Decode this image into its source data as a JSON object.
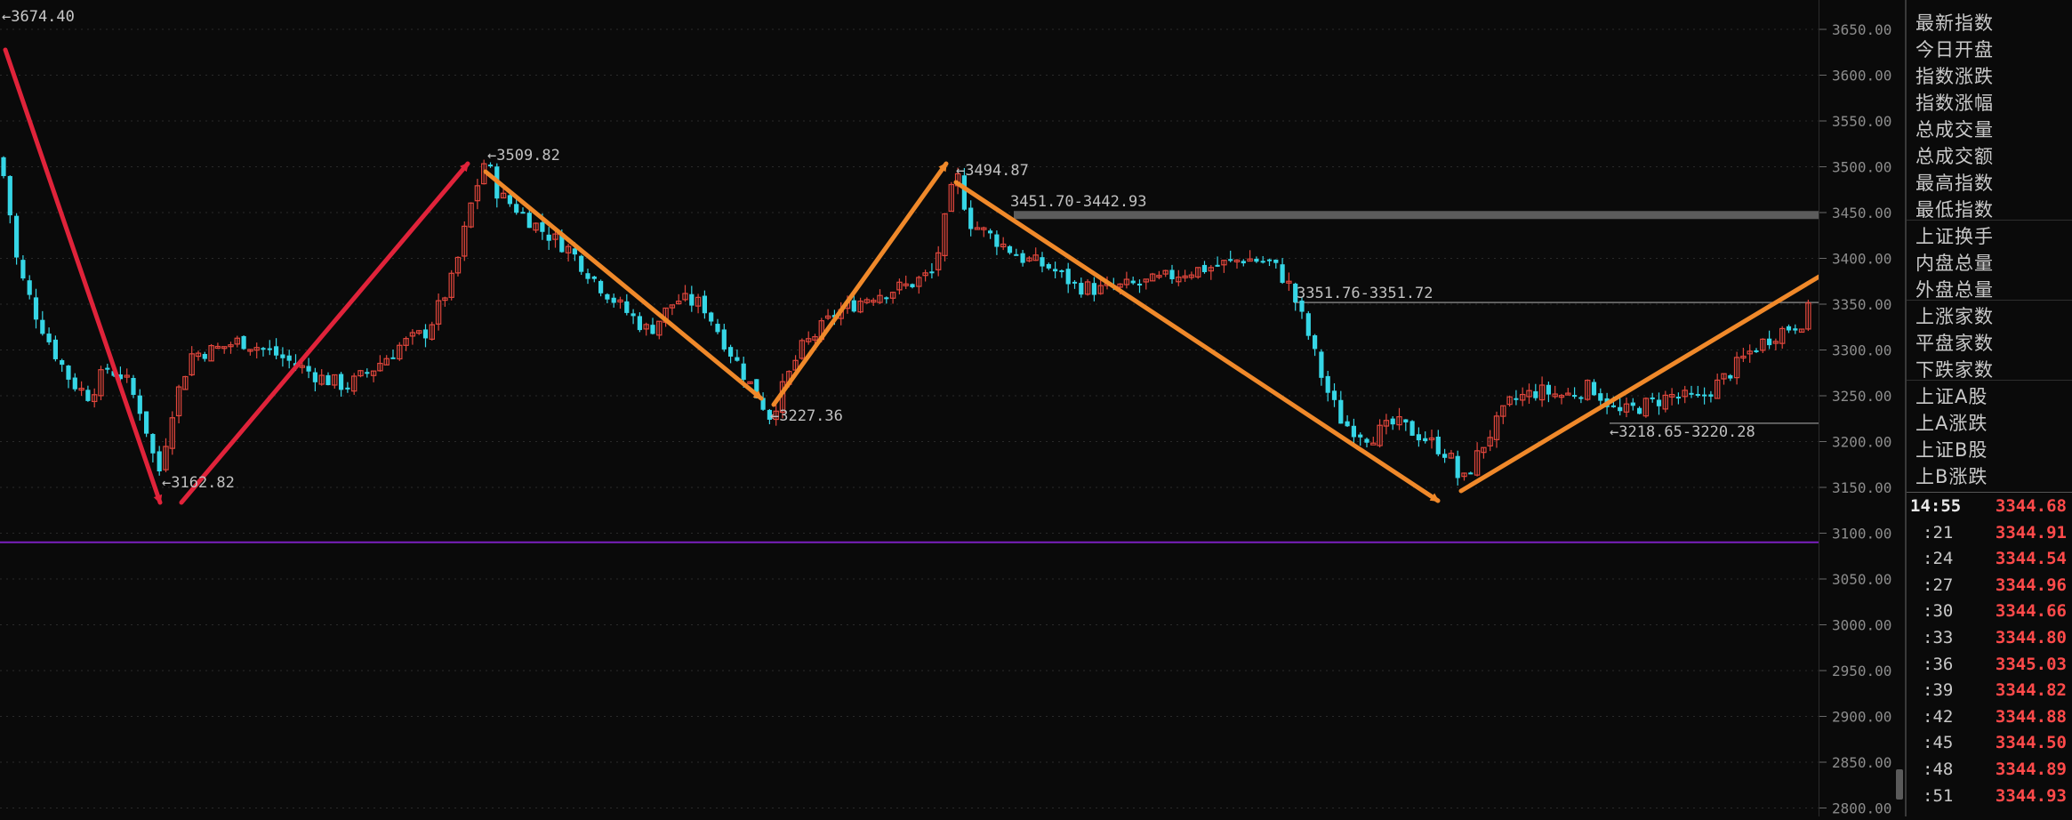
{
  "chart_data": {
    "type": "candlestick",
    "ylim": [
      2800,
      3675
    ],
    "y_ticks": [
      "3650.00",
      "3600.00",
      "3550.00",
      "3500.00",
      "3450.00",
      "3400.00",
      "3350.00",
      "3300.00",
      "3250.00",
      "3200.00",
      "3150.00",
      "3100.00",
      "3050.00",
      "3000.00",
      "2950.00",
      "2900.00",
      "2850.00",
      "2800.00"
    ],
    "top_label": "3674.40",
    "price_path": [
      [
        0,
        3510
      ],
      [
        8,
        3470
      ],
      [
        20,
        3390
      ],
      [
        40,
        3340
      ],
      [
        60,
        3300
      ],
      [
        80,
        3265
      ],
      [
        100,
        3250
      ],
      [
        120,
        3280
      ],
      [
        140,
        3270
      ],
      [
        160,
        3230
      ],
      [
        178,
        3162.82
      ],
      [
        195,
        3240
      ],
      [
        215,
        3295
      ],
      [
        240,
        3300
      ],
      [
        270,
        3310
      ],
      [
        300,
        3300
      ],
      [
        330,
        3285
      ],
      [
        360,
        3270
      ],
      [
        390,
        3260
      ],
      [
        420,
        3280
      ],
      [
        450,
        3305
      ],
      [
        480,
        3320
      ],
      [
        510,
        3380
      ],
      [
        530,
        3460
      ],
      [
        546,
        3509.82
      ],
      [
        560,
        3470
      ],
      [
        580,
        3455
      ],
      [
        610,
        3430
      ],
      [
        640,
        3410
      ],
      [
        670,
        3375
      ],
      [
        700,
        3345
      ],
      [
        730,
        3320
      ],
      [
        760,
        3355
      ],
      [
        790,
        3350
      ],
      [
        820,
        3300
      ],
      [
        845,
        3260
      ],
      [
        866,
        3227.36
      ],
      [
        900,
        3300
      ],
      [
        940,
        3340
      ],
      [
        980,
        3360
      ],
      [
        1020,
        3370
      ],
      [
        1050,
        3385
      ],
      [
        1075,
        3494.87
      ],
      [
        1090,
        3440
      ],
      [
        1120,
        3420
      ],
      [
        1150,
        3400
      ],
      [
        1180,
        3390
      ],
      [
        1210,
        3370
      ],
      [
        1240,
        3365
      ],
      [
        1270,
        3370
      ],
      [
        1300,
        3375
      ],
      [
        1330,
        3385
      ],
      [
        1360,
        3390
      ],
      [
        1400,
        3400
      ],
      [
        1430,
        3395
      ],
      [
        1450,
        3370
      ],
      [
        1470,
        3320
      ],
      [
        1490,
        3260
      ],
      [
        1510,
        3220
      ],
      [
        1540,
        3205
      ],
      [
        1570,
        3220
      ],
      [
        1600,
        3205
      ],
      [
        1630,
        3185
      ],
      [
        1643,
        3152
      ],
      [
        1670,
        3200
      ],
      [
        1700,
        3245
      ],
      [
        1730,
        3255
      ],
      [
        1760,
        3250
      ],
      [
        1790,
        3260
      ],
      [
        1820,
        3230
      ],
      [
        1850,
        3240
      ],
      [
        1880,
        3250
      ],
      [
        1910,
        3245
      ],
      [
        1940,
        3270
      ],
      [
        1970,
        3300
      ],
      [
        2000,
        3320
      ],
      [
        2025,
        3330
      ],
      [
        2035,
        3345
      ]
    ],
    "annotations": [
      "3509.82",
      "3162.82",
      "3227.36",
      "3494.87",
      "3451.70-3442.93",
      "3351.76-3351.72",
      "3218.65-3220.28"
    ],
    "colors": {
      "up": "#e0463c",
      "down": "#36d6e6",
      "trend_red": "#e0233a",
      "trend_orange": "#f0892a",
      "line_purple": "#7a1fbf",
      "band": "#5c5c5c"
    }
  },
  "side_panel": {
    "labels": [
      "最新指数",
      "今日开盘",
      "指数涨跌",
      "指数涨幅",
      "总成交量",
      "总成交额",
      "最高指数",
      "最低指数",
      "上证换手",
      "内盘总量",
      "外盘总量",
      "上涨家数",
      "平盘家数",
      "下跌家数",
      "上证A股",
      "上A涨跌",
      "上证B股",
      "上B涨跌"
    ],
    "ticks": [
      {
        "time": "14:55",
        "price": "3344.68"
      },
      {
        "time": ":21",
        "price": "3344.91"
      },
      {
        "time": ":24",
        "price": "3344.54"
      },
      {
        "time": ":27",
        "price": "3344.96"
      },
      {
        "time": ":30",
        "price": "3344.66"
      },
      {
        "time": ":33",
        "price": "3344.80"
      },
      {
        "time": ":36",
        "price": "3345.03"
      },
      {
        "time": ":39",
        "price": "3344.82"
      },
      {
        "time": ":42",
        "price": "3344.88"
      },
      {
        "time": ":45",
        "price": "3344.50"
      },
      {
        "time": ":48",
        "price": "3344.89"
      },
      {
        "time": ":51",
        "price": "3344.93"
      }
    ]
  }
}
